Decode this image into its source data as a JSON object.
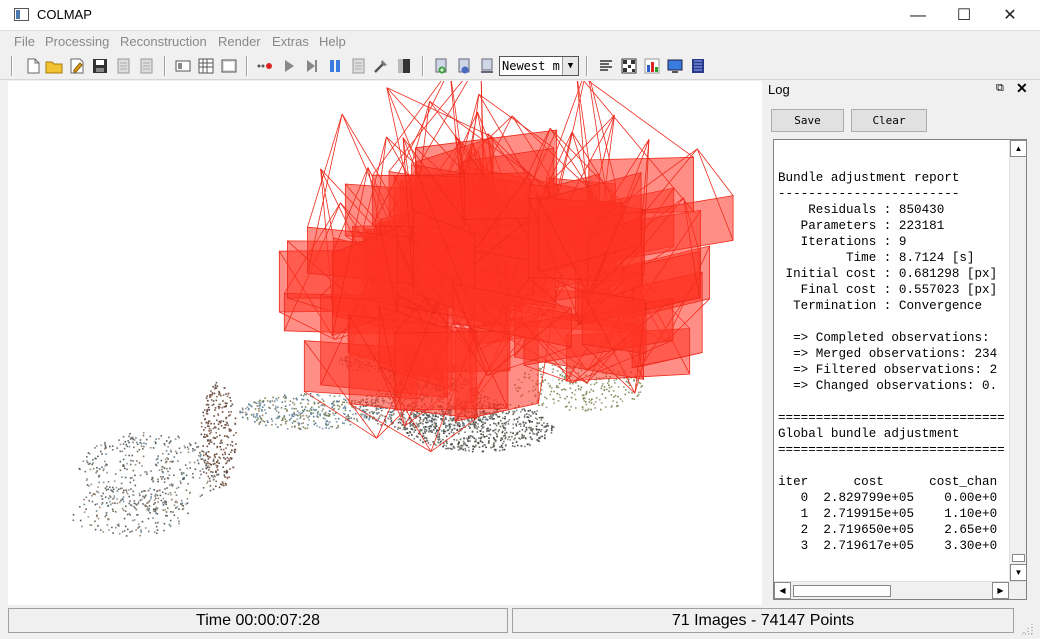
{
  "window": {
    "title": "COLMAP",
    "minimize_glyph": "—",
    "maximize_glyph": "☐",
    "close_glyph": "✕"
  },
  "menu": [
    "File",
    "Processing",
    "Reconstruction",
    "Render",
    "Extras",
    "Help"
  ],
  "toolbar": {
    "icons": [
      "new-project-icon",
      "open-project-icon",
      "edit-project-icon",
      "save-project-icon",
      "import-model-icon",
      "export-model-icon",
      "feature-extraction-icon",
      "feature-matching-icon",
      "database-management-icon",
      "automatic-reconstruction-icon",
      "start-reconstruction-icon",
      "step-reconstruction-icon",
      "pause-reconstruction-icon",
      "reconstruction-options-icon",
      "bundle-adjustment-icon",
      "dense-reconstruction-icon",
      "add-model-icon",
      "model-stats-icon",
      "render-options-icon",
      "log-icon",
      "match-matrix-icon",
      "reconstruction-stats-icon",
      "screenshot-icon",
      "grab-movie-icon"
    ],
    "model_select_value": "Newest m"
  },
  "log": {
    "title": "Log",
    "float_glyph": "⧉",
    "close_glyph": "✕",
    "save_label": "Save",
    "clear_label": "Clear",
    "lines": [
      "Bundle adjustment report",
      "------------------------",
      "    Residuals : 850430",
      "   Parameters : 223181",
      "   Iterations : 9",
      "         Time : 8.7124 [s]",
      " Initial cost : 0.681298 [px]",
      "   Final cost : 0.557023 [px]",
      "  Termination : Convergence",
      "",
      "  => Completed observations: ",
      "  => Merged observations: 234",
      "  => Filtered observations: 2",
      "  => Changed observations: 0.",
      "",
      "==============================",
      "Global bundle adjustment",
      "==============================",
      "",
      "iter      cost      cost_chan",
      "   0  2.829799e+05    0.00e+0",
      "   1  2.719915e+05    1.10e+0",
      "   2  2.719650e+05    2.65e+0",
      "   3  2.719617e+05    3.30e+0"
    ]
  },
  "status": {
    "time": "Time 00:00:07:28",
    "counts": "71 Images - 74147 Points"
  },
  "colors": {
    "camera_frustum": "#ee2a1c",
    "camera_fill": "#ff3322",
    "viewport_bg": "#ffffff"
  }
}
